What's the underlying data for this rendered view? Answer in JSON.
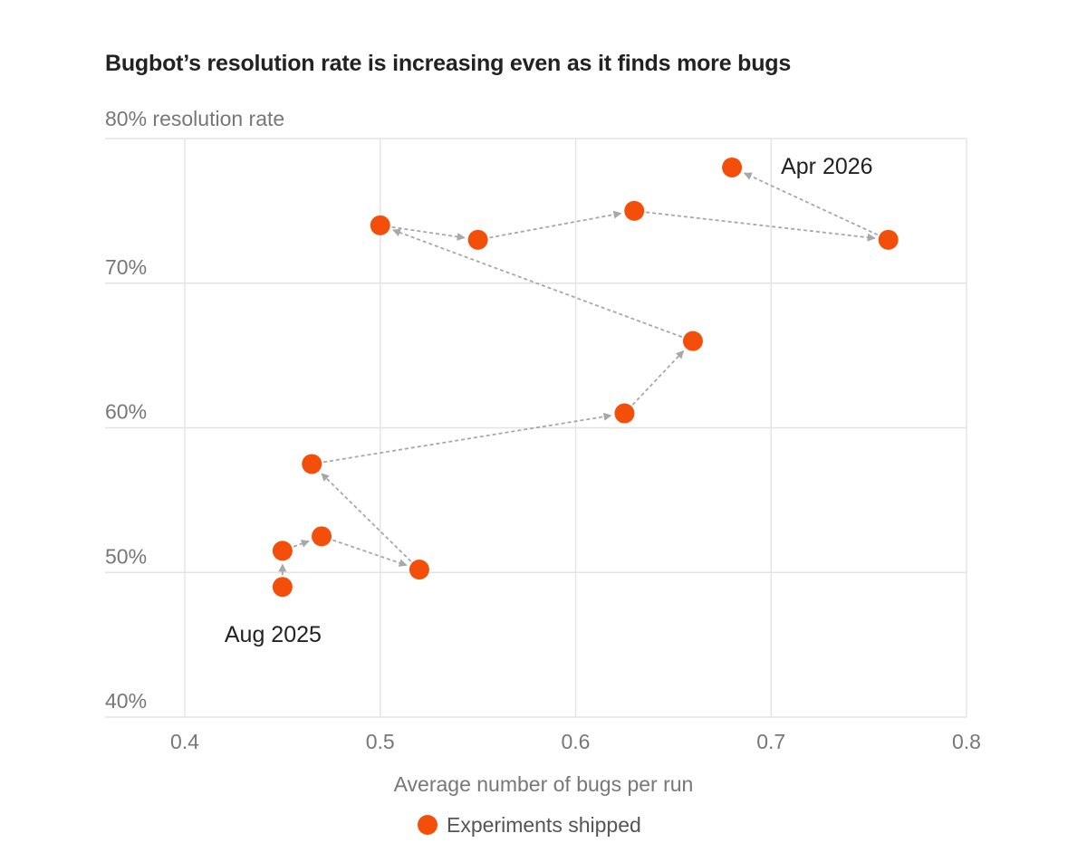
{
  "chart_data": {
    "type": "scatter",
    "title": "Bugbot’s resolution rate is increasing even as it finds more bugs",
    "xlabel": "Average number of bugs per run",
    "ylabel": "80% resolution rate",
    "xlim": [
      0.4,
      0.8
    ],
    "ylim": [
      40,
      80
    ],
    "x_ticks": [
      0.4,
      0.5,
      0.6,
      0.7,
      0.8
    ],
    "x_tick_labels": [
      "0.4",
      "0.5",
      "0.6",
      "0.7",
      "0.8"
    ],
    "y_ticks": [
      40,
      50,
      60,
      70
    ],
    "y_tick_labels": [
      "40%",
      "50%",
      "60%",
      "70%"
    ],
    "grid": true,
    "legend_position": "bottom-center",
    "series": [
      {
        "name": "Experiments shipped",
        "color": "#f44f0a",
        "connected_with_arrows": true,
        "points": [
          {
            "x": 0.45,
            "y": 49.0
          },
          {
            "x": 0.45,
            "y": 51.5
          },
          {
            "x": 0.47,
            "y": 52.5
          },
          {
            "x": 0.52,
            "y": 50.2
          },
          {
            "x": 0.465,
            "y": 57.5
          },
          {
            "x": 0.625,
            "y": 61.0
          },
          {
            "x": 0.66,
            "y": 66.0
          },
          {
            "x": 0.5,
            "y": 74.0
          },
          {
            "x": 0.55,
            "y": 73.0
          },
          {
            "x": 0.63,
            "y": 75.0
          },
          {
            "x": 0.76,
            "y": 73.0
          },
          {
            "x": 0.68,
            "y": 78.0
          }
        ]
      }
    ],
    "annotations": [
      {
        "text": "Aug 2025",
        "point_index": 0,
        "placement": "below-left"
      },
      {
        "text": "Apr 2026",
        "point_index": 11,
        "placement": "right"
      }
    ]
  }
}
